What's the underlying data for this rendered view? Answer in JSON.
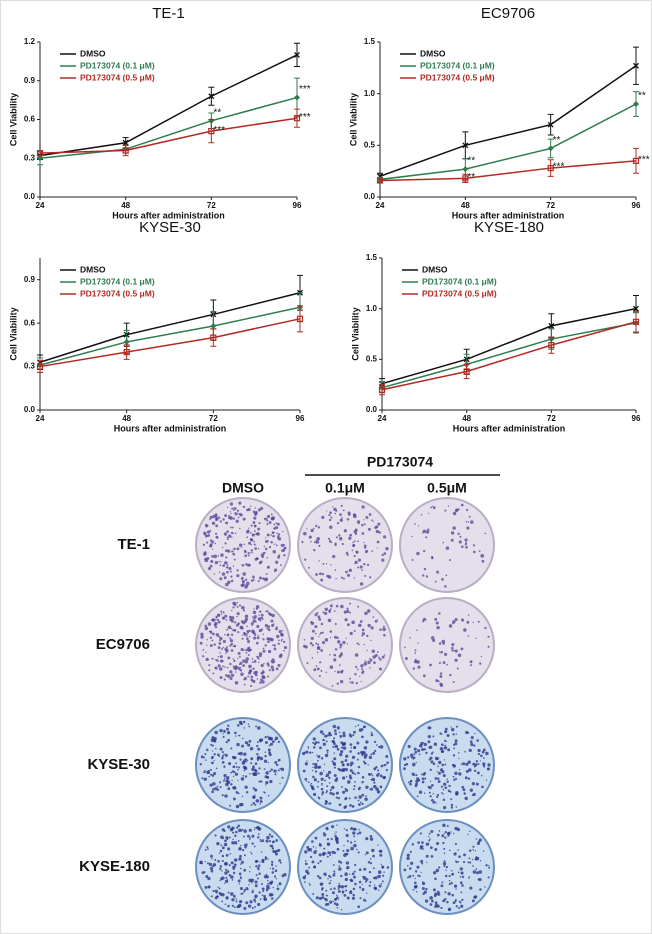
{
  "chart_data": [
    {
      "type": "line",
      "title": "TE-1",
      "ylabel": "Cell Viability",
      "xlabel": "Hours after administration",
      "x": [
        24,
        48,
        72,
        96
      ],
      "xlim": [
        24,
        96
      ],
      "xticks": [
        24,
        48,
        72,
        96
      ],
      "ylim": [
        0,
        1.2
      ],
      "yticks": [
        {
          "value": 0,
          "label": "0.0"
        },
        0.3,
        0.6,
        0.9,
        1.2
      ],
      "legend": "upper left",
      "series": [
        {
          "name": "DMSO",
          "color": "#111111",
          "values": [
            0.32,
            0.42,
            0.78,
            1.1
          ],
          "errors": [
            0.03,
            0.04,
            0.07,
            0.09
          ],
          "stars": [
            null,
            null,
            null,
            null
          ]
        },
        {
          "name": "PD173074 (0.1 μM)",
          "color": "#2e7d4f",
          "values": [
            0.3,
            0.37,
            0.59,
            0.77
          ],
          "errors": [
            0.05,
            0.03,
            0.06,
            0.15
          ],
          "stars": [
            null,
            null,
            "**",
            "***"
          ]
        },
        {
          "name": "PD173074 (0.5 μM)",
          "color": "#b22a22",
          "values": [
            0.34,
            0.36,
            0.51,
            0.61
          ],
          "errors": [
            0.02,
            0.04,
            0.09,
            0.07
          ],
          "stars": [
            null,
            null,
            "***",
            "***"
          ]
        }
      ]
    },
    {
      "type": "line",
      "title": "EC9706",
      "ylabel": "Cell Viability",
      "xlabel": "Hours after administration",
      "x": [
        24,
        48,
        72,
        96
      ],
      "xlim": [
        24,
        96
      ],
      "xticks": [
        24,
        48,
        72,
        96
      ],
      "ylim": [
        0,
        1.5
      ],
      "yticks": [
        {
          "value": 0,
          "label": "0.0"
        },
        0.5,
        {
          "value": 1,
          "label": "1.0"
        },
        1.5
      ],
      "legend": "upper left",
      "series": [
        {
          "name": "DMSO",
          "color": "#111111",
          "values": [
            0.2,
            0.5,
            0.7,
            1.27
          ],
          "errors": [
            0.03,
            0.13,
            0.1,
            0.18
          ],
          "stars": [
            null,
            null,
            null,
            null
          ]
        },
        {
          "name": "PD173074 (0.1 μM)",
          "color": "#2e7d4f",
          "values": [
            0.17,
            0.27,
            0.47,
            0.9
          ],
          "errors": [
            0.02,
            0.1,
            0.09,
            0.12
          ],
          "stars": [
            null,
            "**",
            "**",
            "**"
          ]
        },
        {
          "name": "PD173074 (0.5 μM)",
          "color": "#b22a22",
          "values": [
            0.16,
            0.18,
            0.28,
            0.35
          ],
          "errors": [
            0.02,
            0.04,
            0.08,
            0.12
          ],
          "stars": [
            null,
            "**",
            "***",
            "***"
          ]
        }
      ]
    },
    {
      "type": "line",
      "title": "KYSE-30",
      "ylabel": "Cell Viability",
      "xlabel": "Hours after administration",
      "x": [
        24,
        48,
        72,
        96
      ],
      "xlim": [
        24,
        96
      ],
      "xticks": [
        24,
        48,
        72,
        96
      ],
      "ylim": [
        0,
        1.05
      ],
      "yticks": [
        {
          "value": 0,
          "label": "0.0"
        },
        0.3,
        0.6,
        0.9
      ],
      "legend": "upper left",
      "series": [
        {
          "name": "DMSO",
          "color": "#111111",
          "values": [
            0.33,
            0.52,
            0.66,
            0.81
          ],
          "errors": [
            0.05,
            0.08,
            0.1,
            0.12
          ]
        },
        {
          "name": "PD173074 (0.1 μM)",
          "color": "#2e7d4f",
          "values": [
            0.31,
            0.47,
            0.58,
            0.71
          ],
          "errors": [
            0.05,
            0.08,
            0.1,
            0.1
          ]
        },
        {
          "name": "PD173074 (0.5 μM)",
          "color": "#b22a22",
          "values": [
            0.3,
            0.4,
            0.5,
            0.63
          ],
          "errors": [
            0.04,
            0.05,
            0.06,
            0.09
          ]
        }
      ]
    },
    {
      "type": "line",
      "title": "KYSE-180",
      "ylabel": "Cell Viability",
      "xlabel": "Hours after administration",
      "x": [
        24,
        48,
        72,
        96
      ],
      "xlim": [
        24,
        96
      ],
      "xticks": [
        24,
        48,
        72,
        96
      ],
      "ylim": [
        0,
        1.5
      ],
      "yticks": [
        {
          "value": 0,
          "label": "0.0"
        },
        0.5,
        {
          "value": 1,
          "label": "1.0"
        },
        1.5
      ],
      "legend": "upper left",
      "series": [
        {
          "name": "DMSO",
          "color": "#111111",
          "values": [
            0.26,
            0.5,
            0.83,
            1.0
          ],
          "errors": [
            0.05,
            0.1,
            0.12,
            0.13
          ]
        },
        {
          "name": "PD173074 (0.1 μM)",
          "color": "#2e7d4f",
          "values": [
            0.22,
            0.45,
            0.7,
            0.86
          ],
          "errors": [
            0.05,
            0.1,
            0.1,
            0.1
          ]
        },
        {
          "name": "PD173074 (0.5 μM)",
          "color": "#b22a22",
          "values": [
            0.2,
            0.38,
            0.64,
            0.87
          ],
          "errors": [
            0.05,
            0.07,
            0.08,
            0.1
          ]
        }
      ]
    }
  ],
  "colony_panel": {
    "group_label": "PD173074",
    "columns": [
      "DMSO",
      "0.1μM",
      "0.5μM"
    ],
    "rows": [
      "TE-1",
      "EC9706",
      "KYSE-30",
      "KYSE-180"
    ]
  }
}
